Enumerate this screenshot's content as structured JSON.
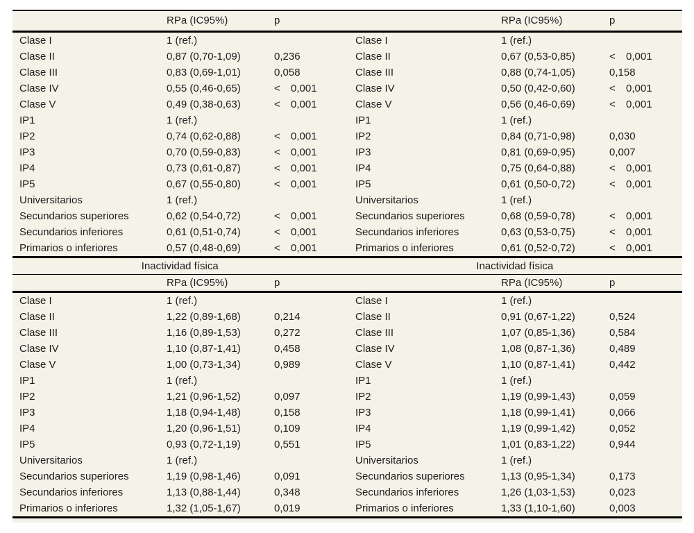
{
  "column_headers": {
    "rpa": "RPa (IC95%)",
    "p": "p"
  },
  "colors": {
    "sheet_background": "#f5f2e8",
    "rule": "#000000",
    "text": "#1c1c1c"
  },
  "sections": [
    {
      "titles": [
        "",
        ""
      ],
      "halves": [
        {
          "rows": [
            {
              "label": "Clase I",
              "rpa": "1 (ref.)",
              "p_sign": "",
              "p": ""
            },
            {
              "label": "Clase II",
              "rpa": "0,87 (0,70-1,09)",
              "p_sign": "",
              "p": "0,236"
            },
            {
              "label": "Clase III",
              "rpa": "0,83 (0,69-1,01)",
              "p_sign": "",
              "p": "0,058"
            },
            {
              "label": "Clase IV",
              "rpa": "0,55 (0,46-0,65)",
              "p_sign": "<",
              "p": "0,001"
            },
            {
              "label": "Clase V",
              "rpa": "0,49 (0,38-0,63)",
              "p_sign": "<",
              "p": "0,001"
            },
            {
              "label": "IP1",
              "rpa": "1 (ref.)",
              "p_sign": "",
              "p": ""
            },
            {
              "label": "IP2",
              "rpa": "0,74 (0,62-0,88)",
              "p_sign": "<",
              "p": "0,001"
            },
            {
              "label": "IP3",
              "rpa": "0,70 (0,59-0,83)",
              "p_sign": "<",
              "p": "0,001"
            },
            {
              "label": "IP4",
              "rpa": "0,73 (0,61-0,87)",
              "p_sign": "<",
              "p": "0,001"
            },
            {
              "label": "IP5",
              "rpa": "0,67 (0,55-0,80)",
              "p_sign": "<",
              "p": "0,001"
            },
            {
              "label": "Universitarios",
              "rpa": "1 (ref.)",
              "p_sign": "",
              "p": ""
            },
            {
              "label": "Secundarios superiores",
              "rpa": "0,62 (0,54-0,72)",
              "p_sign": "<",
              "p": "0,001"
            },
            {
              "label": "Secundarios inferiores",
              "rpa": "0,61 (0,51-0,74)",
              "p_sign": "<",
              "p": "0,001"
            },
            {
              "label": "Primarios o inferiores",
              "rpa": "0,57 (0,48-0,69)",
              "p_sign": "<",
              "p": "0,001"
            }
          ]
        },
        {
          "rows": [
            {
              "label": "Clase I",
              "rpa": "1 (ref.)",
              "p_sign": "",
              "p": ""
            },
            {
              "label": "Clase II",
              "rpa": "0,67 (0,53-0,85)",
              "p_sign": "<",
              "p": "0,001"
            },
            {
              "label": "Clase III",
              "rpa": "0,88 (0,74-1,05)",
              "p_sign": "",
              "p": "0,158"
            },
            {
              "label": "Clase IV",
              "rpa": "0,50 (0,42-0,60)",
              "p_sign": "<",
              "p": "0,001"
            },
            {
              "label": "Clase V",
              "rpa": "0,56 (0,46-0,69)",
              "p_sign": "<",
              "p": "0,001"
            },
            {
              "label": "IP1",
              "rpa": "1 (ref.)",
              "p_sign": "",
              "p": ""
            },
            {
              "label": "IP2",
              "rpa": "0,84 (0,71-0,98)",
              "p_sign": "",
              "p": "0,030"
            },
            {
              "label": "IP3",
              "rpa": "0,81 (0,69-0,95)",
              "p_sign": "",
              "p": "0,007"
            },
            {
              "label": "IP4",
              "rpa": "0,75 (0,64-0,88)",
              "p_sign": "<",
              "p": "0,001"
            },
            {
              "label": "IP5",
              "rpa": "0,61 (0,50-0,72)",
              "p_sign": "<",
              "p": "0,001"
            },
            {
              "label": "Universitarios",
              "rpa": "1 (ref.)",
              "p_sign": "",
              "p": ""
            },
            {
              "label": "Secundarios superiores",
              "rpa": "0,68 (0,59-0,78)",
              "p_sign": "<",
              "p": "0,001"
            },
            {
              "label": "Secundarios inferiores",
              "rpa": "0,63 (0,53-0,75)",
              "p_sign": "<",
              "p": "0,001"
            },
            {
              "label": "Primarios o inferiores",
              "rpa": "0,61 (0,52-0,72)",
              "p_sign": "<",
              "p": "0,001"
            }
          ]
        }
      ]
    },
    {
      "titles": [
        "Inactividad física",
        "Inactividad física"
      ],
      "halves": [
        {
          "rows": [
            {
              "label": "Clase I",
              "rpa": "1 (ref.)",
              "p_sign": "",
              "p": ""
            },
            {
              "label": "Clase II",
              "rpa": "1,22 (0,89-1,68)",
              "p_sign": "",
              "p": "0,214"
            },
            {
              "label": "Clase III",
              "rpa": "1,16 (0,89-1,53)",
              "p_sign": "",
              "p": "0,272"
            },
            {
              "label": "Clase IV",
              "rpa": "1,10 (0,87-1,41)",
              "p_sign": "",
              "p": "0,458"
            },
            {
              "label": "Clase V",
              "rpa": "1,00 (0,73-1,34)",
              "p_sign": "",
              "p": "0,989"
            },
            {
              "label": "IP1",
              "rpa": "1 (ref.)",
              "p_sign": "",
              "p": ""
            },
            {
              "label": "IP2",
              "rpa": "1,21 (0,96-1,52)",
              "p_sign": "",
              "p": "0,097"
            },
            {
              "label": "IP3",
              "rpa": "1,18 (0,94-1,48)",
              "p_sign": "",
              "p": "0,158"
            },
            {
              "label": "IP4",
              "rpa": "1,20 (0,96-1,51)",
              "p_sign": "",
              "p": "0,109"
            },
            {
              "label": "IP5",
              "rpa": "0,93 (0,72-1,19)",
              "p_sign": "",
              "p": "0,551"
            },
            {
              "label": "Universitarios",
              "rpa": "1 (ref.)",
              "p_sign": "",
              "p": ""
            },
            {
              "label": "Secundarios superiores",
              "rpa": "1,19 (0,98-1,46)",
              "p_sign": "",
              "p": "0,091"
            },
            {
              "label": "Secundarios inferiores",
              "rpa": "1,13 (0,88-1,44)",
              "p_sign": "",
              "p": "0,348"
            },
            {
              "label": "Primarios o inferiores",
              "rpa": "1,32 (1,05-1,67)",
              "p_sign": "",
              "p": "0,019"
            }
          ]
        },
        {
          "rows": [
            {
              "label": "Clase I",
              "rpa": "1 (ref.)",
              "p_sign": "",
              "p": ""
            },
            {
              "label": "Clase II",
              "rpa": "0,91 (0,67-1,22)",
              "p_sign": "",
              "p": "0,524"
            },
            {
              "label": "Clase III",
              "rpa": "1,07 (0,85-1,36)",
              "p_sign": "",
              "p": "0,584"
            },
            {
              "label": "Clase IV",
              "rpa": "1,08 (0,87-1,36)",
              "p_sign": "",
              "p": "0,489"
            },
            {
              "label": "Clase V",
              "rpa": "1,10 (0,87-1,41)",
              "p_sign": "",
              "p": "0,442"
            },
            {
              "label": "IP1",
              "rpa": "1 (ref.)",
              "p_sign": "",
              "p": ""
            },
            {
              "label": "IP2",
              "rpa": "1,19 (0,99-1,43)",
              "p_sign": "",
              "p": "0,059"
            },
            {
              "label": "IP3",
              "rpa": "1,18 (0,99-1,41)",
              "p_sign": "",
              "p": "0,066"
            },
            {
              "label": "IP4",
              "rpa": "1,19 (0,99-1,42)",
              "p_sign": "",
              "p": "0,052"
            },
            {
              "label": "IP5",
              "rpa": "1,01 (0,83-1,22)",
              "p_sign": "",
              "p": "0,944"
            },
            {
              "label": "Universitarios",
              "rpa": "1 (ref.)",
              "p_sign": "",
              "p": ""
            },
            {
              "label": "Secundarios superiores",
              "rpa": "1,13 (0,95-1,34)",
              "p_sign": "",
              "p": "0,173"
            },
            {
              "label": "Secundarios inferiores",
              "rpa": "1,26 (1,03-1,53)",
              "p_sign": "",
              "p": "0,023"
            },
            {
              "label": "Primarios o inferiores",
              "rpa": "1,33 (1,10-1,60)",
              "p_sign": "",
              "p": "0,003"
            }
          ]
        }
      ]
    }
  ]
}
